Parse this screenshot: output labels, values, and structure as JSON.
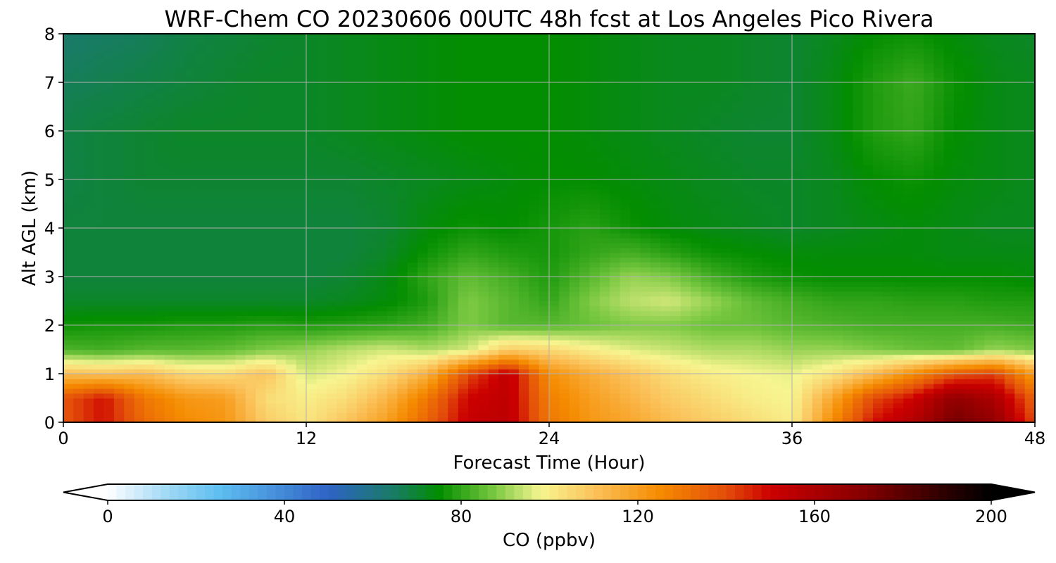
{
  "chart_data": {
    "type": "heatmap",
    "title": "WRF-Chem CO  20230606 00UTC 48h fcst at Los Angeles Pico Rivera",
    "xlabel": "Forecast Time (Hour)",
    "ylabel": "Alt AGL (km)",
    "xlim": [
      0,
      48
    ],
    "ylim": [
      0,
      8
    ],
    "x_ticks": [
      "0",
      "12",
      "24",
      "36",
      "48"
    ],
    "y_ticks": [
      "0",
      "1",
      "2",
      "3",
      "4",
      "5",
      "6",
      "7",
      "8"
    ],
    "grid": true,
    "colorbar": {
      "label": "CO  (ppbv)",
      "range": [
        0,
        200
      ],
      "ticks": [
        "0",
        "40",
        "80",
        "120",
        "160",
        "200"
      ],
      "extend": "both",
      "colormap_stops": [
        {
          "v": 0,
          "c": "#ffffff"
        },
        {
          "v": 12,
          "c": "#a9dcf6"
        },
        {
          "v": 25,
          "c": "#5fbff0"
        },
        {
          "v": 50,
          "c": "#2f63c5"
        },
        {
          "v": 65,
          "c": "#187c63"
        },
        {
          "v": 75,
          "c": "#038d00"
        },
        {
          "v": 87,
          "c": "#74c63e"
        },
        {
          "v": 98,
          "c": "#f7f590"
        },
        {
          "v": 110,
          "c": "#fbc35c"
        },
        {
          "v": 125,
          "c": "#f58b00"
        },
        {
          "v": 140,
          "c": "#e34d0a"
        },
        {
          "v": 150,
          "c": "#cc0000"
        },
        {
          "v": 170,
          "c": "#8a0000"
        },
        {
          "v": 190,
          "c": "#2a0000"
        },
        {
          "v": 200,
          "c": "#000000"
        }
      ]
    },
    "hours": [
      0,
      2,
      4,
      6,
      8,
      10,
      12,
      14,
      16,
      18,
      20,
      22,
      24,
      26,
      28,
      30,
      32,
      34,
      36,
      38,
      40,
      42,
      44,
      46,
      48
    ],
    "levels_km": [
      0,
      0.5,
      1.0,
      1.5,
      2.0,
      2.5,
      3.0,
      3.5,
      4.0,
      5.0,
      6.0,
      7.0,
      8.0
    ],
    "co_ppbv": [
      [
        138,
        148,
        133,
        125,
        122,
        108,
        102,
        110,
        120,
        135,
        152,
        155,
        130,
        122,
        118,
        112,
        108,
        104,
        100,
        125,
        148,
        158,
        175,
        168,
        140
      ],
      [
        138,
        148,
        130,
        122,
        120,
        104,
        100,
        104,
        114,
        130,
        150,
        154,
        128,
        120,
        114,
        108,
        104,
        100,
        98,
        118,
        140,
        150,
        168,
        160,
        135
      ],
      [
        112,
        110,
        112,
        105,
        104,
        110,
        95,
        98,
        104,
        115,
        140,
        154,
        124,
        116,
        110,
        104,
        100,
        98,
        97,
        102,
        112,
        125,
        138,
        142,
        120
      ],
      [
        83,
        82,
        84,
        84,
        85,
        88,
        90,
        93,
        95,
        92,
        95,
        108,
        105,
        100,
        96,
        94,
        92,
        92,
        90,
        90,
        88,
        86,
        85,
        90,
        88
      ],
      [
        76,
        77,
        77,
        78,
        78,
        79,
        78,
        79,
        80,
        82,
        88,
        84,
        84,
        86,
        88,
        88,
        86,
        86,
        84,
        83,
        82,
        82,
        82,
        82,
        81
      ],
      [
        71,
        71,
        71,
        71,
        71,
        71,
        71,
        72,
        74,
        78,
        88,
        84,
        80,
        88,
        93,
        95,
        90,
        85,
        82,
        80,
        80,
        79,
        79,
        78,
        78
      ],
      [
        69,
        69,
        69,
        69,
        69,
        69,
        69,
        70,
        73,
        80,
        85,
        82,
        78,
        84,
        90,
        88,
        82,
        78,
        76,
        75,
        75,
        75,
        75,
        75,
        74
      ],
      [
        69,
        69,
        69,
        69,
        69,
        69,
        69,
        69,
        71,
        76,
        80,
        78,
        77,
        80,
        82,
        79,
        76,
        75,
        74,
        74,
        74,
        74,
        73,
        73,
        73
      ],
      [
        69,
        69,
        69,
        69,
        69,
        69,
        69,
        69,
        70,
        74,
        76,
        75,
        77,
        79,
        76,
        74,
        73,
        72,
        71,
        72,
        73,
        74,
        73,
        72,
        72
      ],
      [
        68,
        69,
        70,
        70,
        70,
        70,
        70,
        70,
        71,
        72,
        73,
        74,
        75,
        75,
        74,
        73,
        72,
        71,
        71,
        72,
        75,
        76,
        74,
        73,
        72
      ],
      [
        68,
        69,
        70,
        71,
        71,
        71,
        71,
        72,
        73,
        74,
        75,
        75,
        75,
        74,
        73,
        72,
        71,
        70,
        70,
        73,
        78,
        80,
        75,
        73,
        72
      ],
      [
        66,
        67,
        68,
        69,
        70,
        71,
        71,
        72,
        73,
        74,
        75,
        75,
        75,
        74,
        73,
        72,
        72,
        71,
        70,
        73,
        78,
        81,
        76,
        73,
        72
      ],
      [
        64,
        65,
        66,
        68,
        69,
        70,
        71,
        72,
        73,
        74,
        75,
        75,
        75,
        74,
        73,
        72,
        72,
        71,
        70,
        72,
        75,
        76,
        74,
        72,
        71
      ]
    ]
  }
}
